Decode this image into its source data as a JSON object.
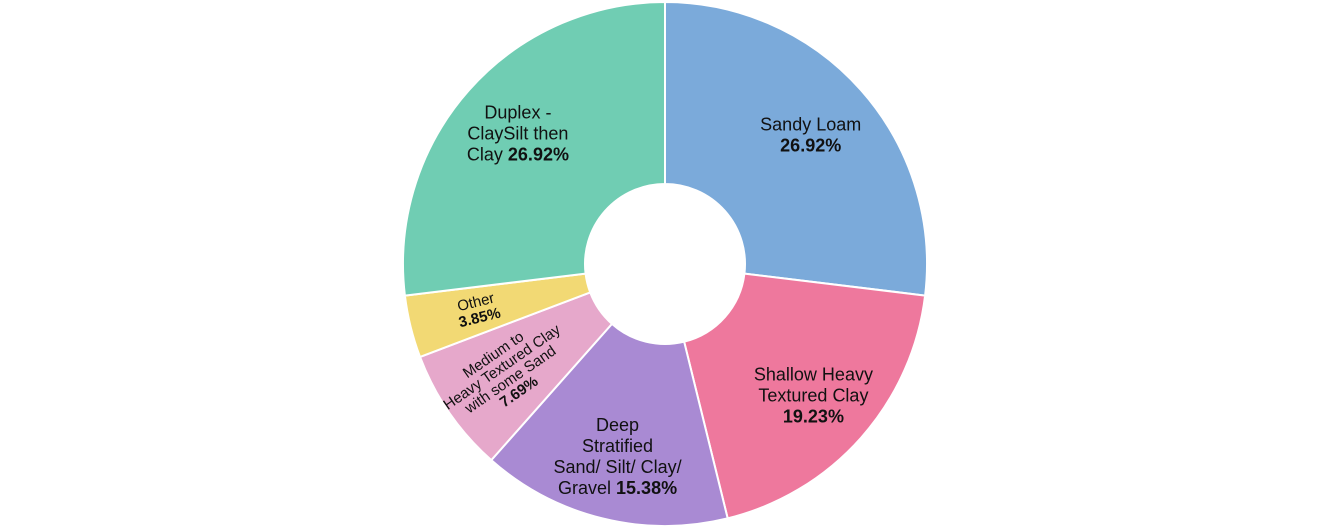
{
  "chart_data": {
    "type": "pie",
    "donut": true,
    "title": "",
    "slices": [
      {
        "name": "Sandy Loam",
        "value": 26.92,
        "value_label": "26.92%",
        "label_lines": [
          "Sandy Loam"
        ],
        "pct_inline": false,
        "color": "#7BAADA"
      },
      {
        "name": "Shallow Heavy Textured Clay",
        "value": 19.23,
        "value_label": "19.23%",
        "label_lines": [
          "Shallow Heavy",
          "Textured Clay"
        ],
        "pct_inline": false,
        "color": "#EE789D"
      },
      {
        "name": "Deep Stratified Sand/ Silt/ Clay/ Gravel",
        "value": 15.38,
        "value_label": "15.38%",
        "label_lines": [
          "Deep",
          "Stratified",
          "Sand/ Silt/ Clay/",
          "Gravel"
        ],
        "pct_inline": true,
        "color": "#A98AD3"
      },
      {
        "name": "Medium to Heavy Textured Clay with some Sand",
        "value": 7.69,
        "value_label": "7.69%",
        "label_lines": [
          "Medium to",
          "Heavy Textured Clay",
          "with some Sand"
        ],
        "pct_inline": false,
        "color": "#E6A8CB"
      },
      {
        "name": "Other",
        "value": 3.85,
        "value_label": "3.85%",
        "label_lines": [
          "Other"
        ],
        "pct_inline": false,
        "color": "#F2D974"
      },
      {
        "name": "Duplex - ClaySilt then Clay",
        "value": 26.92,
        "value_label": "26.92%",
        "label_lines": [
          "Duplex -",
          "ClaySilt then",
          "Clay"
        ],
        "pct_inline": true,
        "color": "#70CDB3"
      }
    ]
  }
}
